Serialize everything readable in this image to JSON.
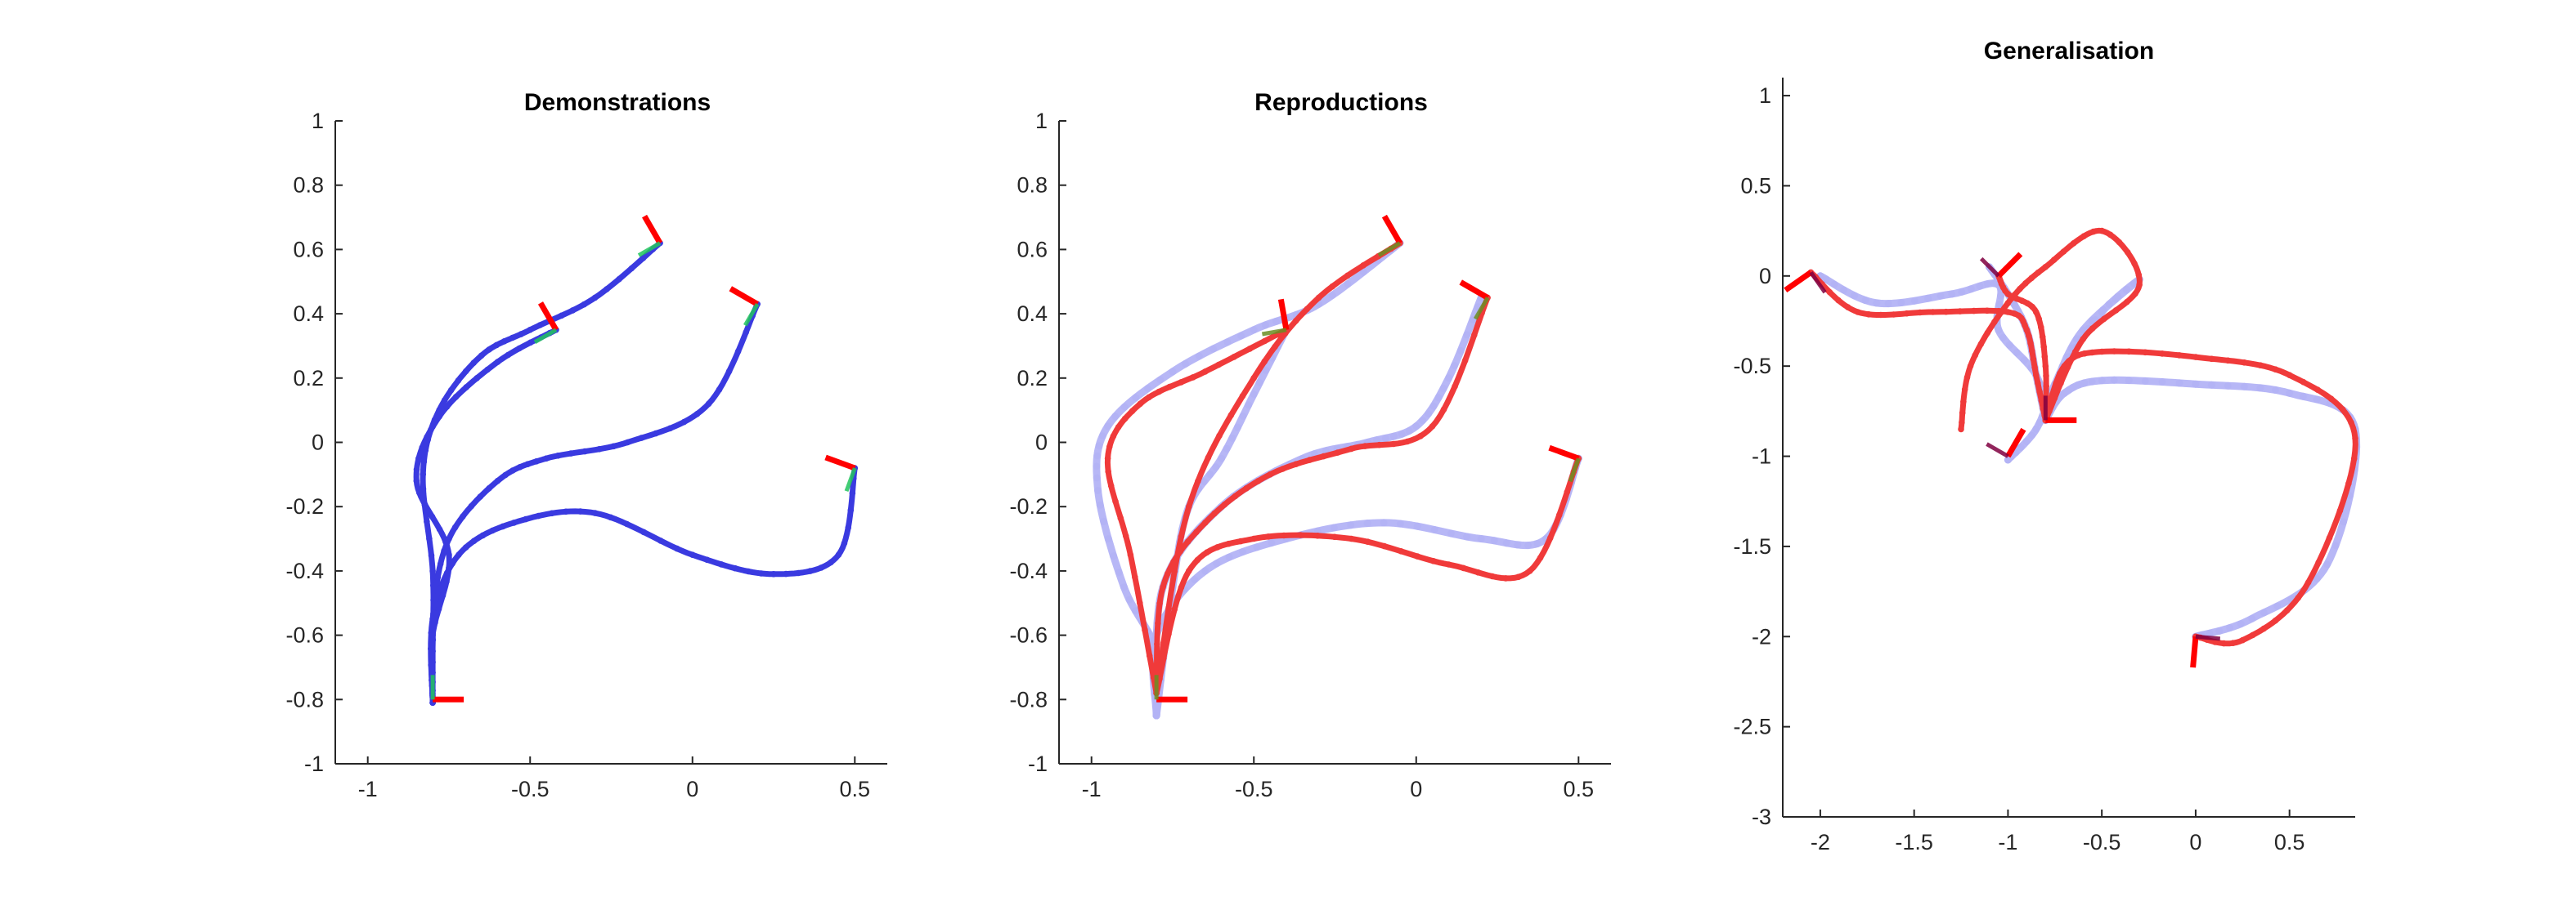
{
  "chart_data": [
    {
      "type": "scatter",
      "title": "Demonstrations",
      "xlabel": "",
      "ylabel": "",
      "xlim": [
        -1.1,
        0.6
      ],
      "ylim": [
        -1,
        1
      ],
      "xticks": [
        -1,
        -0.5,
        0,
        0.5
      ],
      "xtick_labels": [
        "-1",
        "-0.5",
        "0",
        "0.5"
      ],
      "yticks": [
        -1,
        -0.8,
        -0.6,
        -0.4,
        -0.2,
        0,
        0.2,
        0.4,
        0.6,
        0.8,
        1
      ],
      "ytick_labels": [
        "-1",
        "-0.8",
        "-0.6",
        "-0.4",
        "-0.2",
        "0",
        "0.2",
        "0.4",
        "0.6",
        "0.8",
        "1"
      ],
      "grid": false,
      "colors": {
        "demo": "#3a3ae0",
        "frame": "#ff0000",
        "highlight_a": "#22c55e",
        "highlight_b": "#ffff00"
      },
      "series": [
        {
          "role": "demo",
          "x": [
            -0.1,
            -0.3,
            -0.5,
            -0.65,
            -0.78,
            -0.83,
            -0.8,
            -0.8,
            -0.8
          ],
          "y": [
            0.62,
            0.45,
            0.35,
            0.27,
            0.1,
            -0.1,
            -0.4,
            -0.65,
            -0.81
          ]
        },
        {
          "role": "demo",
          "x": [
            0.2,
            0.05,
            -0.2,
            -0.45,
            -0.6,
            -0.75,
            -0.8,
            -0.8
          ],
          "y": [
            0.43,
            0.12,
            0.0,
            -0.05,
            -0.12,
            -0.3,
            -0.55,
            -0.81
          ]
        },
        {
          "role": "demo",
          "x": [
            0.5,
            0.45,
            0.25,
            0.0,
            -0.3,
            -0.55,
            -0.72,
            -0.8,
            -0.8
          ],
          "y": [
            -0.08,
            -0.35,
            -0.41,
            -0.35,
            -0.22,
            -0.25,
            -0.35,
            -0.55,
            -0.81
          ]
        },
        {
          "role": "demo",
          "x": [
            -0.42,
            -0.6,
            -0.78,
            -0.85,
            -0.75,
            -0.8,
            -0.8
          ],
          "y": [
            0.35,
            0.25,
            0.08,
            -0.12,
            -0.35,
            -0.6,
            -0.81
          ]
        }
      ],
      "frames": [
        {
          "x": -0.8,
          "y": -0.8,
          "angle": 0
        },
        {
          "x": -0.1,
          "y": 0.62,
          "angle": 120
        },
        {
          "x": -0.42,
          "y": 0.35,
          "angle": 120
        },
        {
          "x": 0.2,
          "y": 0.43,
          "angle": 150
        },
        {
          "x": 0.5,
          "y": -0.08,
          "angle": 160
        }
      ]
    },
    {
      "type": "scatter",
      "title": "Reproductions",
      "xlabel": "",
      "ylabel": "",
      "xlim": [
        -1.1,
        0.6
      ],
      "ylim": [
        -1,
        1
      ],
      "xticks": [
        -1,
        -0.5,
        0,
        0.5
      ],
      "xtick_labels": [
        "-1",
        "-0.5",
        "0",
        "0.5"
      ],
      "yticks": [
        -1,
        -0.8,
        -0.6,
        -0.4,
        -0.2,
        0,
        0.2,
        0.4,
        0.6,
        0.8,
        1
      ],
      "ytick_labels": [
        "-1",
        "-0.8",
        "-0.6",
        "-0.4",
        "-0.2",
        "0",
        "0.2",
        "0.4",
        "0.6",
        "0.8",
        "1"
      ],
      "grid": false,
      "colors": {
        "reference": "#b3b3f5",
        "reproduction": "#f03a3a",
        "frame": "#ff0000",
        "highlight": "#6b8e23"
      },
      "series": [
        {
          "role": "reference",
          "x": [
            -0.05,
            -0.3,
            -0.5,
            -0.75,
            -0.95,
            -0.98,
            -0.9,
            -0.8,
            -0.8
          ],
          "y": [
            0.62,
            0.43,
            0.35,
            0.22,
            0.05,
            -0.15,
            -0.45,
            -0.65,
            -0.85
          ]
        },
        {
          "role": "reference",
          "x": [
            0.2,
            0.1,
            0.0,
            -0.15,
            -0.35,
            -0.6,
            -0.78,
            -0.8
          ],
          "y": [
            0.45,
            0.2,
            0.05,
            0.0,
            -0.05,
            -0.2,
            -0.45,
            -0.85
          ]
        },
        {
          "role": "reference",
          "x": [
            0.5,
            0.4,
            0.2,
            -0.1,
            -0.4,
            -0.65,
            -0.8,
            -0.8
          ],
          "y": [
            -0.05,
            -0.3,
            -0.3,
            -0.25,
            -0.3,
            -0.4,
            -0.6,
            -0.85
          ]
        },
        {
          "role": "reference",
          "x": [
            -0.4,
            -0.5,
            -0.6,
            -0.7,
            -0.75,
            -0.8
          ],
          "y": [
            0.35,
            0.15,
            -0.05,
            -0.2,
            -0.45,
            -0.85
          ]
        },
        {
          "role": "reproduction",
          "x": [
            -0.05,
            -0.3,
            -0.5,
            -0.7,
            -0.8
          ],
          "y": [
            0.62,
            0.45,
            0.2,
            -0.2,
            -0.78
          ]
        },
        {
          "role": "reproduction",
          "x": [
            0.22,
            0.05,
            -0.2,
            -0.45,
            -0.65,
            -0.78,
            -0.8
          ],
          "y": [
            0.45,
            0.05,
            -0.02,
            -0.1,
            -0.25,
            -0.45,
            -0.78
          ]
        },
        {
          "role": "reproduction",
          "x": [
            0.5,
            0.35,
            0.1,
            -0.2,
            -0.5,
            -0.7,
            -0.8
          ],
          "y": [
            -0.05,
            -0.4,
            -0.38,
            -0.3,
            -0.3,
            -0.4,
            -0.78
          ]
        },
        {
          "role": "reproduction",
          "x": [
            -0.4,
            -0.65,
            -0.85,
            -0.95,
            -0.88,
            -0.8
          ],
          "y": [
            0.35,
            0.22,
            0.12,
            -0.05,
            -0.35,
            -0.78
          ]
        }
      ],
      "frames": [
        {
          "x": -0.8,
          "y": -0.8,
          "angle": 0
        },
        {
          "x": -0.05,
          "y": 0.62,
          "angle": 120
        },
        {
          "x": -0.4,
          "y": 0.35,
          "angle": 100
        },
        {
          "x": 0.22,
          "y": 0.45,
          "angle": 150
        },
        {
          "x": 0.5,
          "y": -0.05,
          "angle": 160
        }
      ]
    },
    {
      "type": "scatter",
      "title": "Generalisation",
      "xlabel": "",
      "ylabel": "",
      "xlim": [
        -2.2,
        0.85
      ],
      "ylim": [
        -3,
        1.1
      ],
      "xticks": [
        -2,
        -1.5,
        -1,
        -0.5,
        0,
        0.5
      ],
      "xtick_labels": [
        "-2",
        "-1.5",
        "-1",
        "-0.5",
        "0",
        "0.5"
      ],
      "yticks": [
        -3,
        -2.5,
        -2,
        -1.5,
        -1,
        -0.5,
        0,
        0.5,
        1
      ],
      "ytick_labels": [
        "-3",
        "-2.5",
        "-2",
        "-1.5",
        "-1",
        "-0.5",
        "0",
        "0.5",
        "1"
      ],
      "grid": false,
      "colors": {
        "reference": "#b3b3f5",
        "reproduction": "#f03a3a",
        "frame": "#ff0000",
        "highlight": "#800040"
      },
      "series": [
        {
          "role": "reference",
          "x": [
            -2.0,
            -1.7,
            -1.3,
            -1.05,
            -1.05,
            -0.85,
            -0.8
          ],
          "y": [
            0.0,
            -0.15,
            -0.1,
            -0.05,
            -0.3,
            -0.55,
            -0.8
          ]
        },
        {
          "role": "reference",
          "x": [
            -1.0,
            -0.85,
            -0.75,
            -0.6,
            -0.3,
            -0.5,
            -0.7,
            -0.8
          ],
          "y": [
            -1.02,
            -0.85,
            -0.6,
            -0.3,
            -0.02,
            -0.2,
            -0.5,
            -0.8
          ]
        },
        {
          "role": "reference",
          "x": [
            -1.1,
            -1.0,
            -0.9,
            -0.85,
            -0.8
          ],
          "y": [
            0.05,
            -0.1,
            -0.3,
            -0.55,
            -0.8
          ]
        },
        {
          "role": "reference",
          "x": [
            0.0,
            0.3,
            0.7,
            0.85,
            0.5,
            0.0,
            -0.5,
            -0.7,
            -0.8
          ],
          "y": [
            -2.0,
            -1.9,
            -1.6,
            -0.85,
            -0.65,
            -0.6,
            -0.58,
            -0.65,
            -0.8
          ]
        },
        {
          "role": "reproduction",
          "x": [
            -2.05,
            -1.8,
            -1.4,
            -1.0,
            -0.9,
            -0.85,
            -0.8
          ],
          "y": [
            0.02,
            -0.2,
            -0.2,
            -0.2,
            -0.3,
            -0.55,
            -0.8
          ]
        },
        {
          "role": "reproduction",
          "x": [
            -1.25,
            -1.2,
            -1.0,
            -0.8,
            -0.5,
            -0.3,
            -0.6,
            -0.8
          ],
          "y": [
            -0.85,
            -0.5,
            -0.15,
            0.05,
            0.25,
            -0.05,
            -0.35,
            -0.8
          ]
        },
        {
          "role": "reproduction",
          "x": [
            -1.05,
            -1.0,
            -0.85,
            -0.8,
            -0.8
          ],
          "y": [
            0.0,
            -0.1,
            -0.2,
            -0.5,
            -0.8
          ]
        },
        {
          "role": "reproduction",
          "x": [
            0.0,
            0.25,
            0.6,
            0.85,
            0.5,
            0.0,
            -0.5,
            -0.7,
            -0.8
          ],
          "y": [
            -2.0,
            -2.02,
            -1.7,
            -0.9,
            -0.55,
            -0.45,
            -0.42,
            -0.5,
            -0.8
          ]
        }
      ],
      "frames": [
        {
          "x": -0.8,
          "y": -0.8,
          "angle": 0
        },
        {
          "x": -2.05,
          "y": 0.02,
          "angle": 215
        },
        {
          "x": -1.0,
          "y": -1.0,
          "angle": 60
        },
        {
          "x": -1.05,
          "y": 0.0,
          "angle": 45
        },
        {
          "x": 0.0,
          "y": -2.0,
          "angle": 265
        }
      ]
    }
  ]
}
